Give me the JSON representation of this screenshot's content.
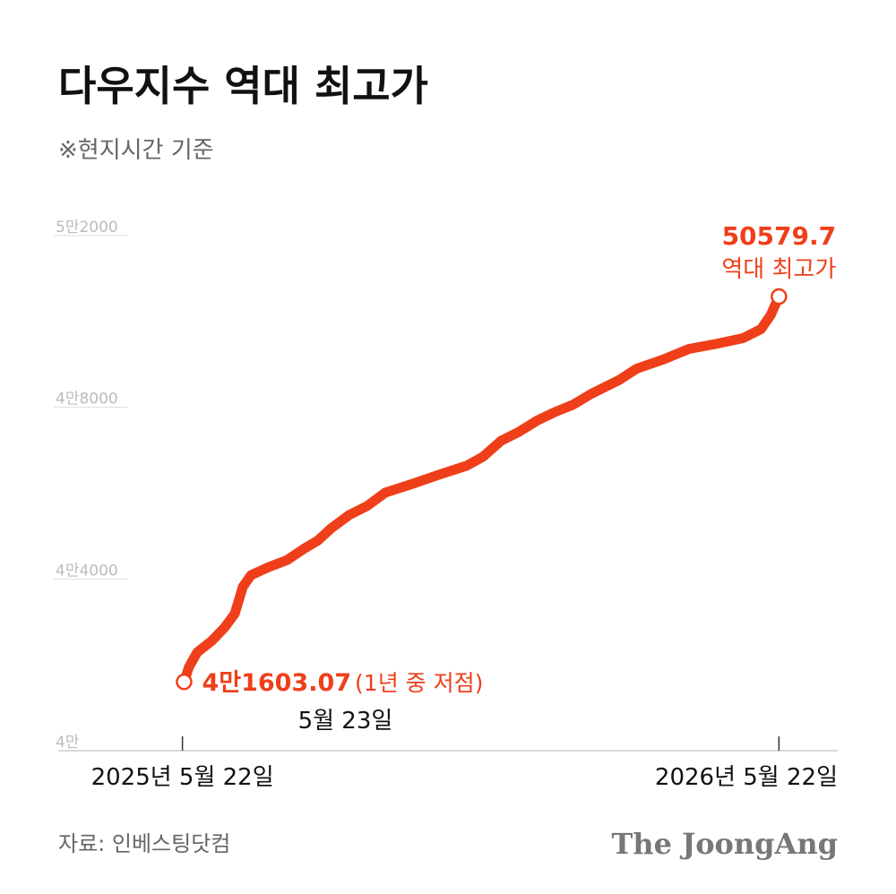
{
  "chart_data": {
    "type": "line",
    "title": "다우지수 역대 최고가",
    "subtitle": "※현지시간 기준",
    "source": "자료: 인베스팅닷컴",
    "brand": "The JoongAng",
    "x": [
      1,
      4,
      9,
      18,
      26,
      32,
      37,
      42,
      53,
      64,
      75,
      83,
      91,
      102,
      113,
      124,
      141,
      157,
      174,
      184,
      195,
      206,
      217,
      228,
      239,
      250,
      267,
      278,
      294,
      310,
      327,
      343,
      354,
      360,
      365
    ],
    "series": [
      {
        "name": "다우지수",
        "color": "#ef3f1a",
        "values": [
          41603.07,
          41950,
          42290,
          42560,
          42880,
          43190,
          43820,
          44090,
          44280,
          44440,
          44720,
          44900,
          45180,
          45490,
          45700,
          46010,
          46220,
          46430,
          46640,
          46850,
          47220,
          47430,
          47690,
          47890,
          48060,
          48310,
          48630,
          48900,
          49110,
          49360,
          49480,
          49610,
          49820,
          50150,
          50579.7
        ]
      }
    ],
    "xlim": [
      -76,
      401
    ],
    "xticks": [
      {
        "value": 0,
        "label": "2025년 5월 22일"
      },
      {
        "value": 365,
        "label": "2026년 5월 22일"
      }
    ],
    "ylim": [
      40000,
      52000
    ],
    "yticks": [
      {
        "value": 40000,
        "label": "4만"
      },
      {
        "value": 44000,
        "label": "4만4000"
      },
      {
        "value": 48000,
        "label": "4만8000"
      },
      {
        "value": 52000,
        "label": "5만2000"
      }
    ],
    "annotations": {
      "high_label": "역대 최고가",
      "low_value": "4만1603.07",
      "low_note": "(1년 중 저점)",
      "low_date": "5월 23일"
    }
  }
}
